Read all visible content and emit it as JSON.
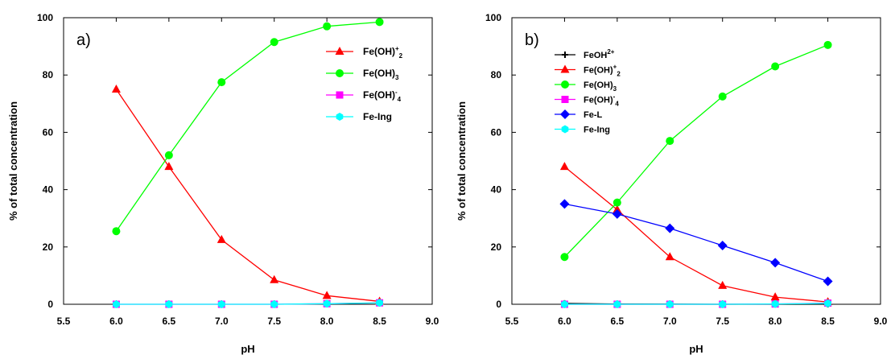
{
  "chart_data": [
    {
      "type": "line",
      "panel_label": "a)",
      "xlabel": "pH",
      "ylabel": "% of total concentration",
      "xlim": [
        5.5,
        9.0
      ],
      "ylim": [
        0,
        100
      ],
      "xticks": [
        "5.5",
        "6.0",
        "6.5",
        "7.0",
        "7.5",
        "8.0",
        "8.5",
        "9.0"
      ],
      "yticks": [
        "0",
        "20",
        "40",
        "60",
        "80",
        "100"
      ],
      "grid": false,
      "legend_position": "top-right",
      "x": [
        6.0,
        6.5,
        7.0,
        7.5,
        8.0,
        8.5
      ],
      "series": [
        {
          "name": "Fe(OH)+2",
          "legend_base": "Fe(OH)",
          "legend_sup": "+",
          "legend_sub": "2",
          "color": "#ff0000",
          "marker": "triangle",
          "values": [
            75,
            48,
            22.5,
            8.5,
            3,
            1
          ]
        },
        {
          "name": "Fe(OH)3",
          "legend_base": "Fe(OH)",
          "legend_sup": "",
          "legend_sub": "3",
          "color": "#00ff00",
          "marker": "circle",
          "values": [
            25.5,
            52,
            77.5,
            91.5,
            97,
            98.5
          ]
        },
        {
          "name": "Fe(OH)-4",
          "legend_base": "Fe(OH)",
          "legend_sup": "-",
          "legend_sub": "4",
          "color": "#ff00ff",
          "marker": "square",
          "values": [
            0,
            0,
            0,
            0,
            0.2,
            0.5
          ]
        },
        {
          "name": "Fe-Ing",
          "legend_base": "Fe-Ing",
          "legend_sup": "",
          "legend_sub": "",
          "color": "#00ffff",
          "marker": "hexagon",
          "values": [
            0,
            0,
            0,
            0,
            0.2,
            0.5
          ]
        }
      ]
    },
    {
      "type": "line",
      "panel_label": "b)",
      "xlabel": "pH",
      "ylabel": "% of total concentration",
      "xlim": [
        5.5,
        9.0
      ],
      "ylim": [
        0,
        100
      ],
      "xticks": [
        "5.5",
        "6.0",
        "6.5",
        "7.0",
        "7.5",
        "8.0",
        "8.5",
        "9.0"
      ],
      "yticks": [
        "0",
        "20",
        "40",
        "60",
        "80",
        "100"
      ],
      "grid": false,
      "legend_position": "top-left",
      "x": [
        6.0,
        6.5,
        7.0,
        7.5,
        8.0,
        8.5
      ],
      "series": [
        {
          "name": "FeOH2+",
          "legend_base": "FeOH",
          "legend_sup": "2+",
          "legend_sub": "",
          "color": "#000000",
          "marker": "plus",
          "values": [
            0.3,
            0.1,
            0.05,
            0,
            0,
            0
          ]
        },
        {
          "name": "Fe(OH)+2",
          "legend_base": "Fe(OH)",
          "legend_sup": "+",
          "legend_sub": "2",
          "color": "#ff0000",
          "marker": "triangle",
          "values": [
            48,
            33,
            16.5,
            6.5,
            2.5,
            0.8
          ]
        },
        {
          "name": "Fe(OH)3",
          "legend_base": "Fe(OH)",
          "legend_sup": "",
          "legend_sub": "3",
          "color": "#00ff00",
          "marker": "circle",
          "values": [
            16.5,
            35.5,
            57,
            72.5,
            83,
            90.5
          ]
        },
        {
          "name": "Fe(OH)-4",
          "legend_base": "Fe(OH)",
          "legend_sup": "-",
          "legend_sub": "4",
          "color": "#ff00ff",
          "marker": "square",
          "values": [
            0,
            0,
            0,
            0,
            0.1,
            0.4
          ]
        },
        {
          "name": "Fe-L",
          "legend_base": "Fe-L",
          "legend_sup": "",
          "legend_sub": "",
          "color": "#0000ff",
          "marker": "diamond",
          "values": [
            35,
            31.5,
            26.5,
            20.5,
            14.5,
            8
          ]
        },
        {
          "name": "Fe-Ing",
          "legend_base": "Fe-Ing",
          "legend_sup": "",
          "legend_sub": "",
          "color": "#00ffff",
          "marker": "hexagon",
          "values": [
            0,
            0,
            0,
            0,
            0.1,
            0.3
          ]
        }
      ]
    }
  ]
}
